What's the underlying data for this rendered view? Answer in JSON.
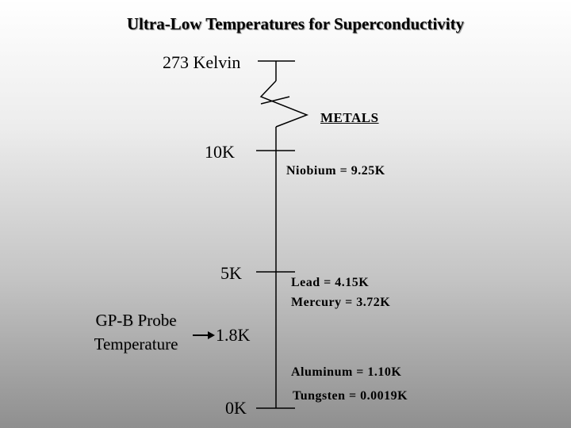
{
  "title": "Ultra-Low Temperatures for Superconductivity",
  "scale_labels": {
    "k273": "273 Kelvin",
    "k10": "10K",
    "k5": "5K",
    "k1_8": "1.8K",
    "k0": "0K"
  },
  "metals_header": "METALS",
  "metals": {
    "niobium": "Niobium = 9.25K",
    "lead": "Lead = 4.15K",
    "mercury": "Mercury = 3.72K",
    "aluminum": "Aluminum = 1.10K",
    "tungsten": "Tungsten = 0.0019K"
  },
  "probe_label": {
    "line1": "GP-B Probe",
    "line2": "Temperature"
  }
}
